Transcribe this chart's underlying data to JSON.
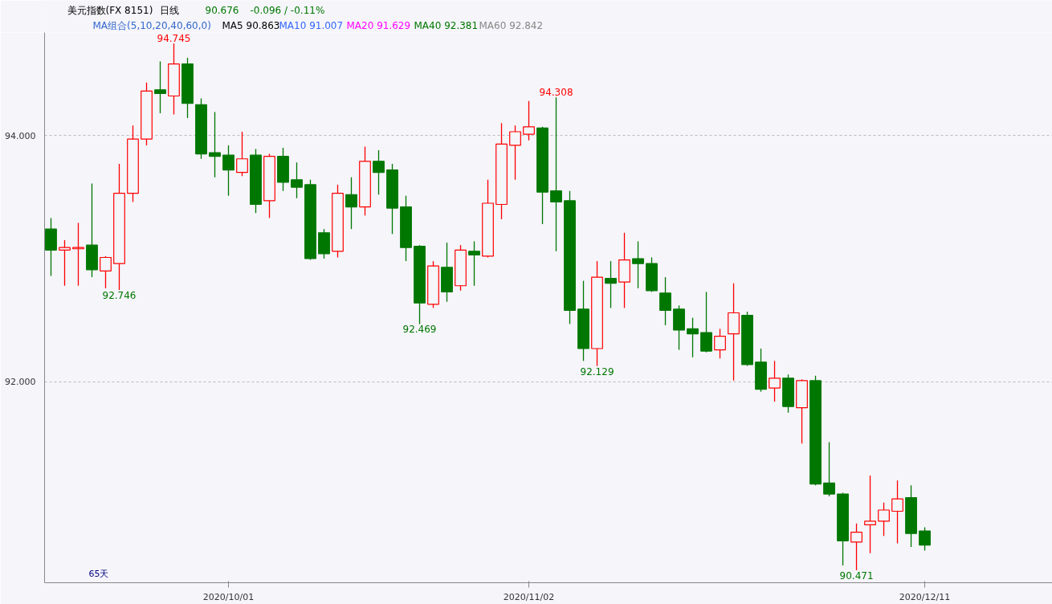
{
  "chart_data": {
    "type": "candlestick",
    "title": "美元指数(FX 8151)",
    "categories": [
      null,
      null,
      null,
      null,
      null,
      null,
      null,
      null,
      null,
      null,
      null,
      null,
      null,
      "2020/10/01",
      null,
      null,
      null,
      null,
      null,
      null,
      null,
      null,
      null,
      null,
      null,
      null,
      null,
      null,
      null,
      null,
      null,
      null,
      null,
      null,
      null,
      "2020/11/02",
      null,
      null,
      null,
      null,
      null,
      null,
      null,
      null,
      null,
      null,
      null,
      null,
      null,
      null,
      null,
      null,
      null,
      null,
      null,
      null,
      null,
      null,
      null,
      null,
      null,
      null,
      null,
      null,
      "2020/12/11"
    ],
    "ohlc": [
      [
        93.24,
        93.33,
        92.86,
        93.07
      ],
      [
        93.07,
        93.15,
        92.78,
        93.09
      ],
      [
        93.08,
        93.29,
        92.78,
        93.09
      ],
      [
        93.11,
        93.61,
        92.85,
        92.91
      ],
      [
        92.9,
        93.02,
        92.76,
        93.01
      ],
      [
        92.96,
        93.77,
        92.746,
        93.53
      ],
      [
        93.53,
        94.08,
        93.46,
        93.97
      ],
      [
        93.97,
        94.43,
        93.92,
        94.36
      ],
      [
        94.37,
        94.6,
        94.18,
        94.34
      ],
      [
        94.32,
        94.745,
        94.17,
        94.58
      ],
      [
        94.58,
        94.63,
        94.14,
        94.26
      ],
      [
        94.25,
        94.3,
        93.81,
        93.85
      ],
      [
        93.86,
        94.19,
        93.66,
        93.83
      ],
      [
        93.84,
        93.92,
        93.51,
        93.72
      ],
      [
        93.7,
        94.03,
        93.67,
        93.81
      ],
      [
        93.84,
        93.89,
        93.37,
        93.44
      ],
      [
        93.47,
        93.85,
        93.33,
        93.83
      ],
      [
        93.83,
        93.9,
        93.55,
        93.62
      ],
      [
        93.64,
        93.78,
        93.49,
        93.58
      ],
      [
        93.6,
        93.64,
        92.99,
        93.0
      ],
      [
        93.21,
        93.24,
        93.0,
        93.04
      ],
      [
        93.06,
        93.6,
        93.01,
        93.53
      ],
      [
        93.52,
        93.66,
        93.24,
        93.42
      ],
      [
        93.42,
        93.91,
        93.35,
        93.79
      ],
      [
        93.79,
        93.88,
        93.52,
        93.7
      ],
      [
        93.72,
        93.77,
        93.2,
        93.41
      ],
      [
        93.42,
        93.51,
        92.98,
        93.09
      ],
      [
        93.1,
        93.11,
        92.469,
        92.64
      ],
      [
        92.63,
        92.98,
        92.6,
        92.94
      ],
      [
        92.93,
        93.13,
        92.65,
        92.73
      ],
      [
        92.78,
        93.11,
        92.74,
        93.07
      ],
      [
        93.06,
        93.14,
        92.78,
        93.03
      ],
      [
        93.02,
        93.64,
        93.01,
        93.45
      ],
      [
        93.44,
        94.1,
        93.32,
        93.93
      ],
      [
        93.92,
        94.08,
        93.64,
        94.03
      ],
      [
        94.01,
        94.28,
        93.96,
        94.07
      ],
      [
        94.06,
        94.07,
        93.28,
        93.54
      ],
      [
        93.55,
        94.308,
        93.06,
        93.46
      ],
      [
        93.47,
        93.55,
        92.47,
        92.58
      ],
      [
        92.59,
        92.82,
        92.17,
        92.27
      ],
      [
        92.27,
        92.98,
        92.129,
        92.85
      ],
      [
        92.84,
        92.98,
        92.6,
        92.8
      ],
      [
        92.81,
        93.21,
        92.6,
        92.99
      ],
      [
        93.0,
        93.14,
        92.76,
        92.96
      ],
      [
        92.96,
        93.01,
        92.73,
        92.74
      ],
      [
        92.72,
        92.85,
        92.46,
        92.58
      ],
      [
        92.59,
        92.62,
        92.26,
        92.42
      ],
      [
        92.43,
        92.52,
        92.2,
        92.39
      ],
      [
        92.4,
        92.73,
        92.24,
        92.25
      ],
      [
        92.26,
        92.43,
        92.19,
        92.37
      ],
      [
        92.39,
        92.8,
        92.01,
        92.56
      ],
      [
        92.54,
        92.57,
        92.13,
        92.14
      ],
      [
        92.16,
        92.27,
        91.92,
        91.94
      ],
      [
        91.95,
        92.17,
        91.84,
        92.03
      ],
      [
        92.03,
        92.06,
        91.75,
        91.8
      ],
      [
        91.79,
        92.02,
        91.5,
        92.01
      ],
      [
        92.01,
        92.05,
        91.16,
        91.17
      ],
      [
        91.18,
        91.51,
        91.07,
        91.09
      ],
      [
        91.09,
        91.1,
        90.51,
        90.71
      ],
      [
        90.7,
        90.85,
        90.471,
        90.78
      ],
      [
        90.84,
        91.24,
        90.61,
        90.87
      ],
      [
        90.87,
        91.02,
        90.75,
        90.96
      ],
      [
        90.95,
        91.2,
        90.69,
        91.05
      ],
      [
        91.06,
        91.16,
        90.66,
        90.77
      ],
      [
        90.79,
        90.82,
        90.63,
        90.676
      ]
    ],
    "colors": [
      "#007700",
      "#ff0000",
      "#ff0000",
      "#007700",
      "#ff0000",
      "#ff0000",
      "#ff0000",
      "#ff0000",
      "#007700",
      "#ff0000",
      "#007700",
      "#007700",
      "#007700",
      "#007700",
      "#ff0000",
      "#007700",
      "#ff0000",
      "#007700",
      "#007700",
      "#007700",
      "#007700",
      "#ff0000",
      "#007700",
      "#ff0000",
      "#007700",
      "#007700",
      "#007700",
      "#007700",
      "#ff0000",
      "#007700",
      "#ff0000",
      "#007700",
      "#ff0000",
      "#ff0000",
      "#ff0000",
      "#ff0000",
      "#007700",
      "#007700",
      "#007700",
      "#007700",
      "#ff0000",
      "#007700",
      "#ff0000",
      "#007700",
      "#007700",
      "#007700",
      "#007700",
      "#007700",
      "#007700",
      "#ff0000",
      "#ff0000",
      "#007700",
      "#007700",
      "#ff0000",
      "#007700",
      "#ff0000",
      "#007700",
      "#007700",
      "#007700",
      "#ff0000",
      "#ff0000",
      "#ff0000",
      "#ff0000",
      "#007700",
      "#007700"
    ],
    "ylim": [
      90.37,
      94.835
    ],
    "yticks": [
      {
        "value": 92,
        "label": "92.000"
      },
      {
        "value": 94,
        "label": "94.000"
      }
    ],
    "grid": "y",
    "annotations": [
      "日线",
      "90.676",
      "-0.096 / -0.11%",
      "MA组合(5,10,20,40,60,0)",
      "MA5 90.863",
      "MA10 91.007",
      "MA20 91.629",
      "MA40 92.381",
      "MA60 92.842",
      "65天",
      {
        "text": "94.745",
        "y": 94.745
      },
      {
        "text": "94.308",
        "y": 94.308
      },
      {
        "text": "92.746",
        "y": 92.746
      },
      {
        "text": "92.469",
        "y": 92.469
      },
      {
        "text": "92.129",
        "y": 92.129
      },
      {
        "text": "90.471",
        "y": 90.471
      }
    ]
  }
}
